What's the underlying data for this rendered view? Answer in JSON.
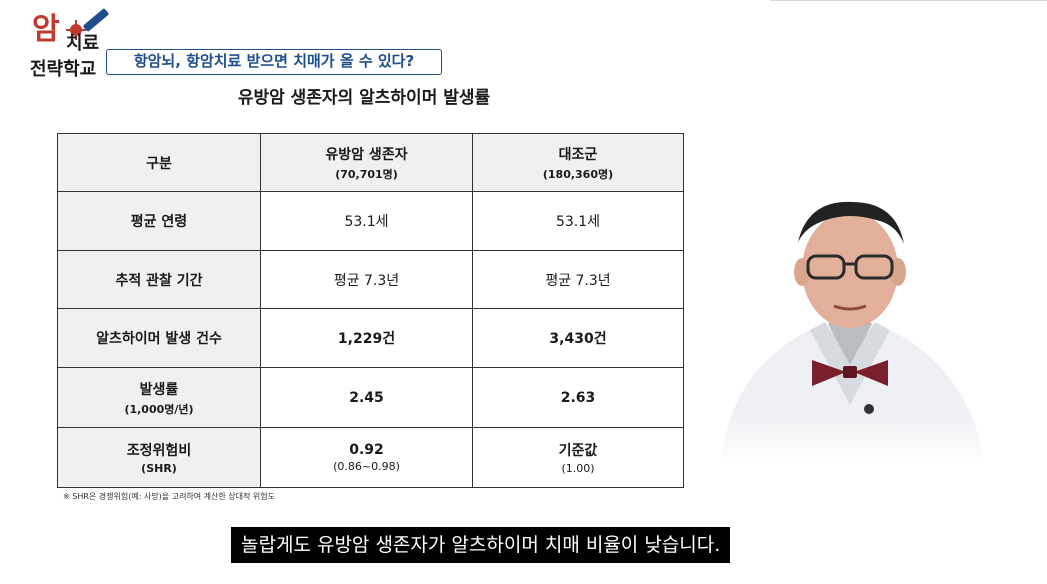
{
  "logo": {
    "syllable": "암",
    "line1": "치료",
    "line2": "전략학교"
  },
  "banner": "항암뇌, 항암치료 받으면 치매가 올 수 있다?",
  "slide_title": "유방암 생존자의 알츠하이머 발생률",
  "table": {
    "headers": [
      {
        "label": "구분",
        "sub": ""
      },
      {
        "label": "유방암 생존자",
        "sub": "(70,701명)"
      },
      {
        "label": "대조군",
        "sub": "(180,360명)"
      }
    ],
    "rows": [
      {
        "label": "평균 연령",
        "sub": "",
        "a": "53.1세",
        "a_sub": "",
        "b": "53.1세",
        "b_sub": ""
      },
      {
        "label": "추적 관찰 기간",
        "sub": "",
        "a": "평균 7.3년",
        "a_sub": "",
        "b": "평균 7.3년",
        "b_sub": ""
      },
      {
        "label": "알츠하이머 발생 건수",
        "sub": "",
        "a": "1,229건",
        "a_sub": "",
        "b": "3,430건",
        "b_sub": ""
      },
      {
        "label": "발생률",
        "sub": "(1,000명/년)",
        "a": "2.45",
        "a_sub": "",
        "b": "2.63",
        "b_sub": ""
      },
      {
        "label": "조정위험비",
        "sub": "(SHR)",
        "a": "0.92",
        "a_sub": "(0.86~0.98)",
        "b": "기준값",
        "b_sub": "(1.00)"
      }
    ]
  },
  "footnote": "※ SHR은 경쟁위험(예: 사망)을 고려하여 계산한 상대적 위험도",
  "caption": "놀랍게도 유방암 생존자가 알츠하이머 치매 비율이 낮습니다."
}
